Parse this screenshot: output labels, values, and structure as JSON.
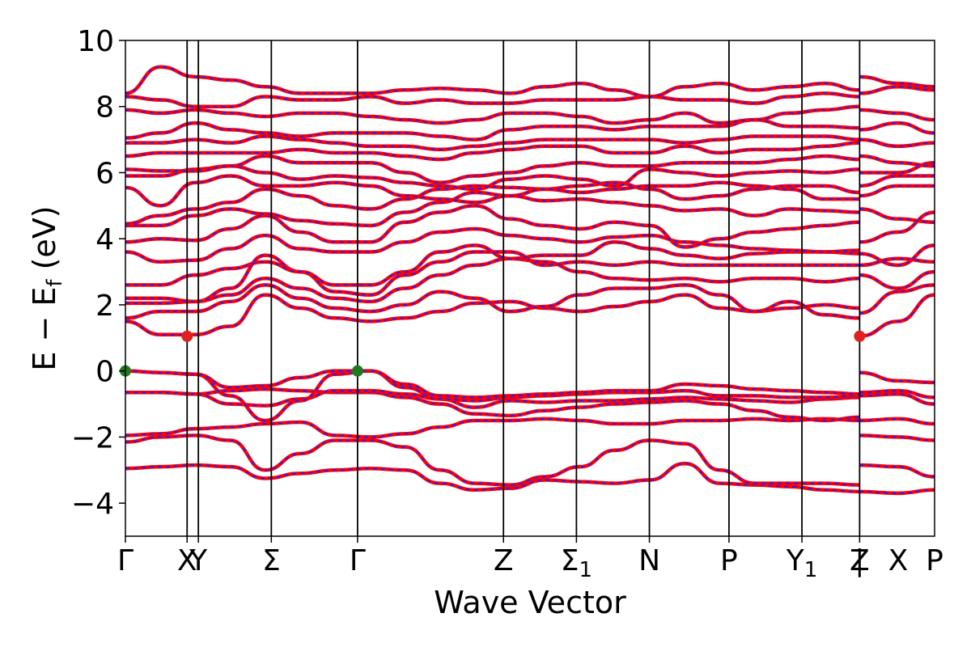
{
  "chart_data": {
    "type": "line",
    "xlabel": "Wave Vector",
    "ylabel_parts": [
      "E − E",
      "f",
      " (eV)"
    ],
    "ylim": [
      -5,
      10
    ],
    "xlim": [
      0,
      11.07
    ],
    "yticks": [
      -4,
      -2,
      0,
      2,
      4,
      6,
      8,
      10
    ],
    "ytick_labels": [
      "−4",
      "−2",
      "0",
      "2",
      "4",
      "6",
      "8",
      "10"
    ],
    "kpoints": [
      {
        "label": "Γ",
        "x": 0
      },
      {
        "label": "X",
        "x": 0.93
      },
      {
        "label": "Y",
        "x": 1.1
      },
      {
        "label": "Σ",
        "x": 2.2
      },
      {
        "label": "Γ",
        "x": 3.5
      },
      {
        "label": "Z",
        "x": 5.7
      },
      {
        "label": "Σ",
        "sub": "1",
        "x": 6.8
      },
      {
        "label": "N",
        "x": 7.9
      },
      {
        "label": "P",
        "x": 9.1
      },
      {
        "label": "Y",
        "sub": "1",
        "x": 10.2
      },
      {
        "label": "Z",
        "x": 11.07
      }
    ],
    "extra_segment_labels": [
      {
        "label": "|",
        "x": 11.07
      },
      {
        "label": "X",
        "x": 11.65
      },
      {
        "label": "P",
        "x": 12.2
      }
    ],
    "bands": [
      [
        -2.95,
        -2.9,
        -2.85,
        -2.9,
        -3.25,
        -3.1,
        -3.0,
        -2.95,
        -3.0,
        -3.4,
        -3.6,
        -3.55,
        -3.3,
        -3.35,
        -3.4,
        -3.3,
        -2.8,
        -3.4,
        -3.45,
        -3.5,
        -3.6,
        -3.65
      ],
      [
        -2.15,
        -2.0,
        -1.95,
        -2.1,
        -3.0,
        -2.5,
        -2.1,
        -2.1,
        -2.3,
        -3.0,
        -3.4,
        -3.45,
        -3.2,
        -2.9,
        -2.4,
        -2.1,
        -2.2,
        -3.0,
        -3.4,
        -3.4,
        -3.4,
        -3.45
      ],
      [
        -1.95,
        -1.9,
        -1.75,
        -1.7,
        -1.6,
        -1.55,
        -1.95,
        -2.0,
        -1.9,
        -1.7,
        -1.5,
        -1.5,
        -1.45,
        -1.5,
        -1.6,
        -1.6,
        -1.5,
        -1.5,
        -1.45,
        -1.5,
        -1.45,
        -1.5
      ],
      [
        -0.65,
        -0.65,
        -0.7,
        -0.6,
        -0.55,
        -0.6,
        -0.65,
        -0.65,
        -0.8,
        -1.0,
        -1.3,
        -1.35,
        -1.2,
        -1.1,
        -1.0,
        -0.95,
        -0.9,
        -1.0,
        -1.2,
        -1.4,
        -1.5,
        -1.4
      ],
      [
        -0.65,
        -0.65,
        -0.7,
        -1.0,
        -1.05,
        -0.85,
        -0.6,
        -0.6,
        -0.7,
        -0.85,
        -1.1,
        -0.9,
        -0.95,
        -0.9,
        -0.9,
        -0.85,
        -0.8,
        -0.85,
        -0.9,
        -0.95,
        -0.85,
        -0.8
      ],
      [
        0.0,
        -0.05,
        -0.1,
        -0.75,
        -1.5,
        -0.9,
        -0.1,
        0.0,
        -0.5,
        -0.85,
        -0.9,
        -0.8,
        -0.75,
        -0.7,
        -0.65,
        -0.65,
        -0.6,
        -0.75,
        -0.75,
        -0.8,
        -0.8,
        -0.75
      ],
      [
        0.0,
        -0.05,
        -0.1,
        -0.5,
        -0.45,
        -0.2,
        0.0,
        0.0,
        -0.4,
        -0.75,
        -0.8,
        -0.75,
        -0.7,
        -0.65,
        -0.6,
        -0.6,
        -0.4,
        -0.45,
        -0.55,
        -0.6,
        -0.65,
        -0.7
      ],
      [
        1.5,
        1.1,
        1.1,
        1.35,
        2.3,
        1.9,
        1.6,
        1.5,
        1.6,
        1.8,
        2.05,
        2.1,
        1.9,
        1.8,
        1.95,
        2.1,
        2.3,
        1.9,
        1.8,
        1.9,
        2.0,
        1.9
      ],
      [
        1.6,
        1.8,
        1.8,
        2.1,
        2.6,
        2.2,
        1.9,
        1.8,
        2.0,
        2.4,
        2.2,
        1.8,
        1.95,
        2.3,
        2.5,
        2.5,
        2.6,
        2.3,
        1.8,
        2.1,
        1.7,
        1.6
      ],
      [
        2.05,
        2.05,
        2.1,
        2.3,
        2.8,
        2.5,
        2.2,
        2.1,
        2.5,
        2.9,
        3.2,
        3.4,
        3.3,
        3.0,
        2.8,
        2.75,
        2.8,
        2.7,
        2.8,
        2.8,
        2.7,
        2.8
      ],
      [
        2.2,
        2.2,
        2.1,
        2.5,
        3.5,
        3.0,
        2.4,
        2.3,
        2.9,
        3.3,
        3.6,
        3.6,
        3.2,
        3.3,
        3.2,
        3.3,
        3.2,
        3.2,
        3.2,
        3.2,
        3.2,
        3.2
      ],
      [
        2.6,
        2.6,
        2.9,
        3.1,
        3.3,
        3.0,
        2.6,
        2.6,
        3.0,
        3.6,
        3.8,
        3.4,
        3.5,
        3.5,
        3.9,
        3.7,
        3.5,
        3.4,
        3.55,
        3.6,
        3.6,
        3.55
      ],
      [
        3.6,
        3.3,
        3.35,
        3.7,
        4.1,
        3.7,
        3.6,
        3.6,
        3.9,
        4.2,
        4.3,
        4.1,
        4.0,
        3.9,
        4.05,
        4.1,
        3.9,
        3.8,
        3.7,
        3.65,
        3.6,
        3.65
      ],
      [
        3.9,
        4.0,
        3.95,
        4.3,
        4.7,
        4.2,
        3.9,
        3.9,
        4.5,
        4.8,
        5.0,
        4.6,
        4.4,
        4.3,
        4.5,
        4.4,
        3.75,
        4.0,
        4.2,
        4.3,
        4.4,
        4.5
      ],
      [
        4.4,
        4.4,
        4.7,
        4.9,
        4.75,
        4.55,
        4.45,
        4.4,
        4.8,
        5.1,
        5.4,
        5.3,
        5.15,
        5.2,
        5.1,
        5.0,
        4.85,
        4.9,
        4.7,
        4.9,
        4.85,
        4.8
      ],
      [
        4.45,
        4.7,
        4.9,
        5.1,
        5.5,
        5.3,
        5.0,
        4.9,
        5.2,
        5.5,
        5.6,
        5.55,
        5.5,
        5.6,
        5.7,
        5.5,
        5.2,
        5.3,
        5.5,
        5.6,
        5.6,
        5.4
      ],
      [
        5.55,
        5.0,
        5.7,
        5.9,
        5.6,
        5.6,
        5.7,
        5.6,
        5.3,
        5.2,
        5.1,
        5.3,
        5.5,
        5.4,
        5.5,
        5.6,
        5.6,
        5.7,
        5.6,
        5.5,
        5.2,
        5.2
      ],
      [
        5.9,
        5.9,
        6.1,
        6.2,
        6.0,
        5.8,
        5.9,
        5.85,
        5.7,
        5.6,
        5.5,
        5.8,
        5.9,
        5.8,
        5.6,
        6.1,
        6.0,
        5.9,
        6.0,
        6.05,
        6.0,
        6.1
      ],
      [
        6.1,
        6.05,
        6.05,
        6.2,
        6.5,
        6.3,
        6.3,
        6.3,
        6.0,
        5.7,
        5.9,
        6.0,
        6.2,
        6.3,
        6.2,
        6.2,
        6.3,
        6.3,
        6.3,
        6.4,
        6.5,
        6.4
      ],
      [
        6.5,
        6.6,
        6.6,
        6.6,
        6.6,
        6.7,
        6.6,
        6.6,
        6.5,
        6.4,
        6.6,
        6.7,
        6.8,
        6.8,
        6.6,
        6.6,
        6.8,
        6.6,
        6.7,
        6.7,
        6.8,
        6.9
      ],
      [
        6.9,
        6.9,
        7.0,
        6.9,
        7.1,
        7.0,
        6.9,
        6.8,
        6.8,
        6.7,
        6.8,
        6.9,
        7.0,
        7.0,
        7.0,
        7.0,
        6.9,
        7.0,
        7.1,
        7.1,
        7.1,
        7.0
      ],
      [
        7.05,
        7.2,
        7.5,
        7.3,
        7.2,
        7.1,
        7.2,
        7.2,
        7.2,
        7.1,
        7.0,
        7.3,
        7.4,
        7.4,
        7.3,
        7.4,
        7.4,
        7.4,
        7.6,
        7.4,
        7.4,
        7.35
      ],
      [
        7.9,
        7.8,
        7.9,
        7.8,
        7.7,
        7.8,
        7.8,
        7.7,
        7.6,
        7.5,
        7.6,
        7.8,
        7.8,
        7.7,
        7.5,
        7.6,
        7.8,
        7.5,
        7.6,
        7.8,
        7.9,
        8.0
      ],
      [
        8.3,
        8.2,
        8.0,
        8.0,
        8.3,
        8.2,
        8.2,
        8.3,
        8.1,
        8.2,
        8.1,
        8.1,
        8.2,
        8.2,
        8.2,
        8.3,
        8.2,
        8.2,
        8.1,
        8.3,
        8.4,
        8.3
      ],
      [
        8.4,
        9.2,
        8.9,
        8.8,
        8.6,
        8.4,
        8.4,
        8.4,
        8.5,
        8.55,
        8.5,
        8.4,
        8.6,
        8.7,
        8.5,
        8.3,
        8.6,
        8.7,
        8.5,
        8.6,
        8.7,
        8.5
      ]
    ],
    "extra_bands": [
      [
        -3.65,
        -3.7,
        -3.6
      ],
      [
        -2.85,
        -2.9,
        -3.2
      ],
      [
        -1.95,
        -2.0,
        -2.1
      ],
      [
        -1.5,
        -1.45,
        -1.6
      ],
      [
        -0.75,
        -0.7,
        -1.0
      ],
      [
        -0.65,
        -0.6,
        -0.8
      ],
      [
        -0.05,
        -0.3,
        -0.35
      ],
      [
        1.05,
        1.5,
        2.3
      ],
      [
        1.75,
        2.4,
        2.6
      ],
      [
        2.9,
        2.5,
        3.0
      ],
      [
        3.2,
        3.4,
        3.3
      ],
      [
        3.55,
        3.2,
        3.8
      ],
      [
        3.9,
        4.2,
        4.8
      ],
      [
        4.9,
        4.6,
        4.5
      ],
      [
        5.3,
        5.6,
        5.6
      ],
      [
        5.6,
        5.9,
        5.9
      ],
      [
        6.0,
        6.0,
        6.3
      ],
      [
        6.5,
        6.3,
        6.2
      ],
      [
        7.0,
        6.8,
        6.9
      ],
      [
        7.3,
        7.5,
        7.2
      ],
      [
        7.9,
        7.8,
        7.6
      ],
      [
        8.4,
        8.6,
        8.5
      ],
      [
        8.9,
        8.7,
        8.6
      ]
    ],
    "markers": [
      {
        "x": 0,
        "y": 0,
        "color": "#1f7a1f"
      },
      {
        "x": 3.5,
        "y": 0,
        "color": "#1f7a1f"
      },
      {
        "x": 0.93,
        "y": 1.05,
        "color": "#e02020"
      },
      {
        "x": 11.07,
        "y": 1.05,
        "color": "#e02020"
      }
    ],
    "series_colors": {
      "line": "#ff0000",
      "dash": "#2020ff"
    }
  }
}
